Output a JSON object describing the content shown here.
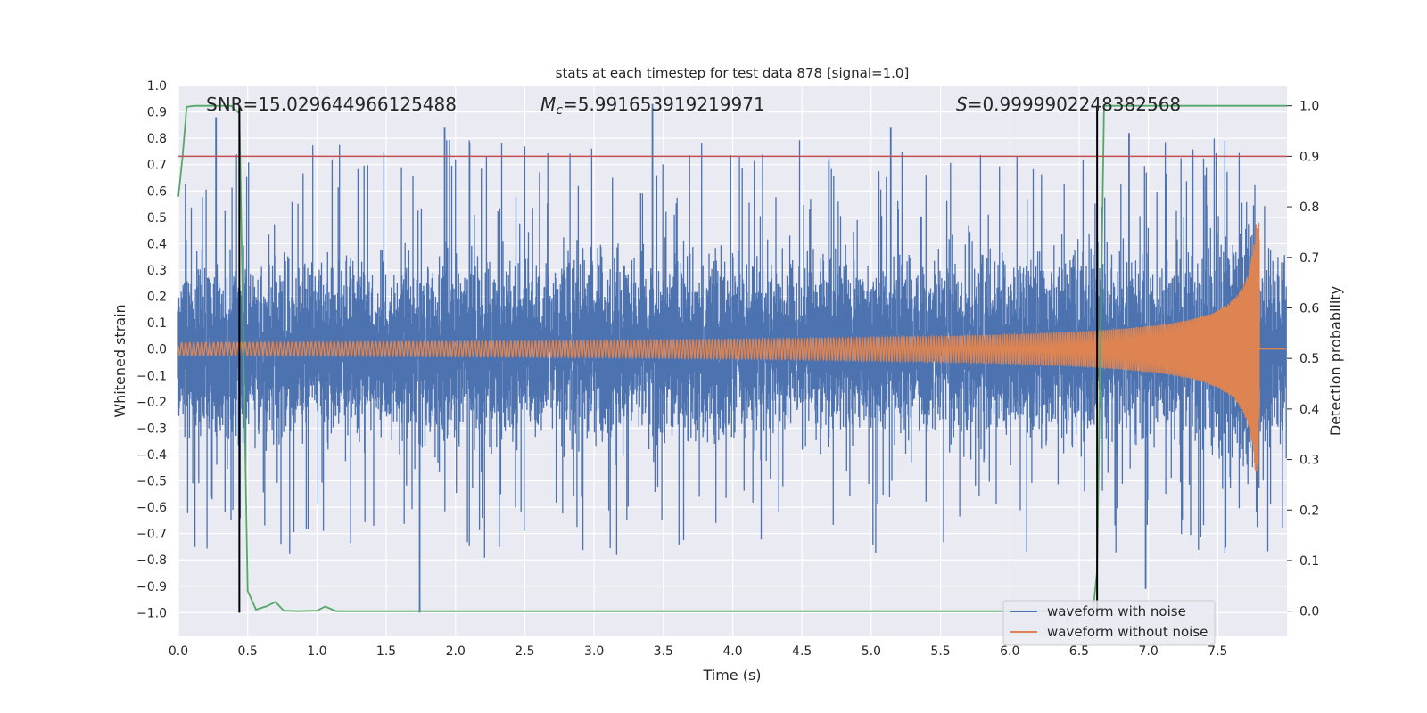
{
  "chart_data": {
    "type": "line",
    "title": "stats at each timestep for test data 878 [signal=1.0]",
    "xlabel": "Time (s)",
    "ylabel": "Whitened strain",
    "ylabel_right": "Detection probability",
    "xlim": [
      0.0,
      8.0
    ],
    "ylim": [
      -1.09,
      1.0
    ],
    "ylim_right": [
      -0.05,
      1.04
    ],
    "xticks": [
      "0.0",
      "0.5",
      "1.0",
      "1.5",
      "2.0",
      "2.5",
      "3.0",
      "3.5",
      "4.0",
      "4.5",
      "5.0",
      "5.5",
      "6.0",
      "6.5",
      "7.0",
      "7.5"
    ],
    "yticks": [
      "1.0",
      "0.9",
      "0.8",
      "0.7",
      "0.6",
      "0.5",
      "0.4",
      "0.3",
      "0.2",
      "0.1",
      "0.0",
      "−0.1",
      "−0.2",
      "−0.3",
      "−0.4",
      "−0.5",
      "−0.6",
      "−0.7",
      "−0.8",
      "−0.9",
      "−1.0"
    ],
    "yticks_right": [
      "1.0",
      "0.9",
      "0.8",
      "0.7",
      "0.6",
      "0.5",
      "0.4",
      "0.3",
      "0.2",
      "0.1",
      "0.0"
    ],
    "annotations": {
      "snr": "SNR=15.029644966125488",
      "mc": "=5.991653919219971",
      "s": "=0.9999902248382568"
    },
    "threshold_right": 0.9,
    "detection_lines_x": [
      0.44,
      6.63
    ],
    "legend": [
      "waveform with noise",
      "waveform without noise"
    ],
    "legend_loc": "lower right",
    "series": [
      {
        "name": "waveform with noise",
        "color": "#4c72b0",
        "envelope": "noise band approx ±0.45, peaks to ±0.9",
        "notable_points": [
          [
            0.27,
            0.88
          ],
          [
            1.92,
            0.84
          ],
          [
            3.42,
            0.93
          ],
          [
            5.14,
            0.84
          ],
          [
            6.86,
            0.82
          ],
          [
            1.74,
            -1.0
          ],
          [
            6.98,
            -0.91
          ]
        ]
      },
      {
        "name": "waveform without noise",
        "color": "#dd8452",
        "x_end": 7.82,
        "amplitude_start": 0.025,
        "amplitude_peak": 0.48,
        "t_peak": 7.8
      },
      {
        "name": "detection probability",
        "color": "#55a868",
        "axis": "right",
        "x": [
          0.0,
          0.03,
          0.06,
          0.12,
          0.2,
          0.3,
          0.38,
          0.44,
          0.5,
          0.56,
          0.64,
          0.7,
          0.76,
          0.86,
          1.0,
          1.06,
          1.14,
          2.0,
          3.0,
          4.0,
          5.0,
          6.0,
          6.6,
          6.63,
          6.68,
          6.8,
          7.0,
          7.5,
          8.0
        ],
        "y": [
          0.82,
          0.9,
          0.998,
          1.0,
          1.0,
          1.0,
          1.0,
          0.985,
          0.04,
          0.003,
          0.01,
          0.018,
          0.001,
          0.0,
          0.001,
          0.009,
          0.0,
          0.0,
          0.0,
          0.0,
          0.0,
          0.0,
          0.0,
          0.08,
          1.0,
          1.0,
          1.0,
          1.0,
          1.0
        ]
      }
    ]
  }
}
